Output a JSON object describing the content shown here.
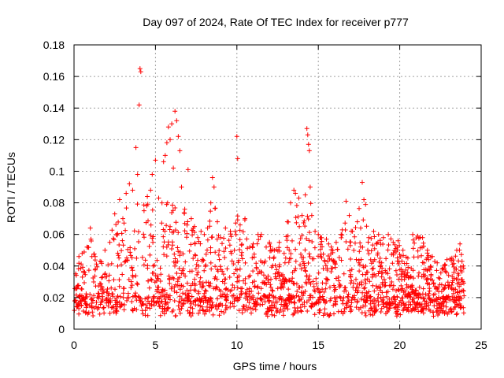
{
  "chart_data": {
    "type": "scatter",
    "title": "Day 097 of 2024, Rate Of TEC Index for receiver p777",
    "xlabel": "GPS time / hours",
    "ylabel": "ROTI / TECUs",
    "xlim": [
      0,
      25
    ],
    "ylim": [
      0,
      0.18
    ],
    "xticks": [
      0,
      5,
      10,
      15,
      20,
      25
    ],
    "xtick_labels": [
      "0",
      "5",
      "10",
      "15",
      "20",
      "25"
    ],
    "yticks": [
      0,
      0.02,
      0.04,
      0.06,
      0.08,
      0.1,
      0.12,
      0.14,
      0.16,
      0.18
    ],
    "ytick_labels": [
      "0",
      "0.02",
      "0.04",
      "0.06",
      "0.08",
      "0.1",
      "0.12",
      "0.14",
      "0.16",
      "0.18"
    ],
    "grid": true,
    "marker": "+",
    "color": "#ff0000",
    "series": [
      {
        "name": "ROTI",
        "points": [
          [
            0.1,
            0.035
          ],
          [
            0.3,
            0.046
          ],
          [
            0.5,
            0.048
          ],
          [
            0.8,
            0.052
          ],
          [
            1.0,
            0.064
          ],
          [
            1.3,
            0.046
          ],
          [
            1.6,
            0.043
          ],
          [
            1.9,
            0.05
          ],
          [
            2.2,
            0.055
          ],
          [
            2.5,
            0.073
          ],
          [
            2.8,
            0.082
          ],
          [
            3.0,
            0.07
          ],
          [
            3.2,
            0.086
          ],
          [
            3.4,
            0.092
          ],
          [
            3.6,
            0.088
          ],
          [
            3.8,
            0.115
          ],
          [
            3.9,
            0.098
          ],
          [
            4.0,
            0.142
          ],
          [
            4.05,
            0.165
          ],
          [
            4.1,
            0.163
          ],
          [
            4.3,
            0.075
          ],
          [
            4.5,
            0.084
          ],
          [
            4.7,
            0.088
          ],
          [
            4.8,
            0.098
          ],
          [
            5.0,
            0.107
          ],
          [
            5.2,
            0.083
          ],
          [
            5.4,
            0.08
          ],
          [
            5.5,
            0.106
          ],
          [
            5.6,
            0.11
          ],
          [
            5.7,
            0.118
          ],
          [
            5.8,
            0.128
          ],
          [
            5.9,
            0.12
          ],
          [
            6.0,
            0.13
          ],
          [
            6.1,
            0.102
          ],
          [
            6.2,
            0.138
          ],
          [
            6.3,
            0.132
          ],
          [
            6.4,
            0.122
          ],
          [
            6.5,
            0.113
          ],
          [
            6.6,
            0.09
          ],
          [
            6.8,
            0.076
          ],
          [
            7.0,
            0.101
          ],
          [
            7.2,
            0.07
          ],
          [
            7.4,
            0.065
          ],
          [
            7.6,
            0.058
          ],
          [
            7.8,
            0.062
          ],
          [
            8.0,
            0.06
          ],
          [
            8.2,
            0.064
          ],
          [
            8.4,
            0.08
          ],
          [
            8.5,
            0.096
          ],
          [
            8.6,
            0.09
          ],
          [
            8.8,
            0.068
          ],
          [
            9.0,
            0.058
          ],
          [
            9.3,
            0.064
          ],
          [
            9.6,
            0.062
          ],
          [
            9.9,
            0.062
          ],
          [
            10.0,
            0.122
          ],
          [
            10.05,
            0.108
          ],
          [
            10.2,
            0.066
          ],
          [
            10.5,
            0.07
          ],
          [
            10.8,
            0.052
          ],
          [
            11.0,
            0.054
          ],
          [
            11.3,
            0.06
          ],
          [
            11.5,
            0.06
          ],
          [
            11.8,
            0.052
          ],
          [
            12.0,
            0.055
          ],
          [
            12.3,
            0.05
          ],
          [
            12.6,
            0.055
          ],
          [
            12.9,
            0.048
          ],
          [
            13.1,
            0.068
          ],
          [
            13.3,
            0.08
          ],
          [
            13.5,
            0.088
          ],
          [
            13.6,
            0.086
          ],
          [
            13.8,
            0.083
          ],
          [
            14.0,
            0.072
          ],
          [
            14.2,
            0.085
          ],
          [
            14.3,
            0.127
          ],
          [
            14.35,
            0.123
          ],
          [
            14.4,
            0.117
          ],
          [
            14.45,
            0.113
          ],
          [
            14.5,
            0.09
          ],
          [
            14.6,
            0.072
          ],
          [
            14.8,
            0.062
          ],
          [
            15.0,
            0.06
          ],
          [
            15.2,
            0.058
          ],
          [
            15.5,
            0.057
          ],
          [
            15.8,
            0.052
          ],
          [
            16.1,
            0.055
          ],
          [
            16.4,
            0.06
          ],
          [
            16.7,
            0.081
          ],
          [
            16.9,
            0.072
          ],
          [
            17.1,
            0.062
          ],
          [
            17.4,
            0.068
          ],
          [
            17.7,
            0.093
          ],
          [
            17.8,
            0.082
          ],
          [
            17.9,
            0.079
          ],
          [
            18.1,
            0.058
          ],
          [
            18.4,
            0.062
          ],
          [
            18.7,
            0.06
          ],
          [
            19.0,
            0.058
          ],
          [
            19.3,
            0.06
          ],
          [
            19.6,
            0.055
          ],
          [
            19.9,
            0.056
          ],
          [
            20.2,
            0.05
          ],
          [
            20.5,
            0.045
          ],
          [
            20.8,
            0.06
          ],
          [
            21.1,
            0.059
          ],
          [
            21.4,
            0.058
          ],
          [
            21.7,
            0.05
          ],
          [
            22.0,
            0.046
          ],
          [
            22.3,
            0.042
          ],
          [
            22.6,
            0.038
          ],
          [
            22.9,
            0.044
          ],
          [
            23.2,
            0.045
          ],
          [
            23.5,
            0.05
          ],
          [
            23.7,
            0.054
          ],
          [
            23.9,
            0.04
          ]
        ]
      }
    ]
  }
}
